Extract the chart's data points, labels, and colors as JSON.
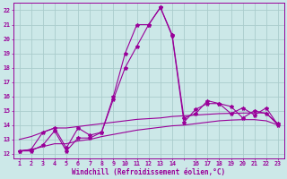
{
  "xlabel": "Windchill (Refroidissement éolien,°C)",
  "bg_color": "#cce8e8",
  "grid_color": "#aacccc",
  "line_color": "#990099",
  "xlim": [
    0.5,
    23.5
  ],
  "ylim": [
    11.7,
    22.5
  ],
  "yticks": [
    12,
    13,
    14,
    15,
    16,
    17,
    18,
    19,
    20,
    21,
    22
  ],
  "xtick_labels": [
    "1",
    "2",
    "3",
    "4",
    "5",
    "6",
    "7",
    "8",
    "9",
    "10",
    "11",
    "12",
    "13",
    "14",
    "",
    "16",
    "17",
    "18",
    "19",
    "20",
    "21",
    "22",
    "23"
  ],
  "hours": [
    1,
    2,
    3,
    4,
    5,
    6,
    7,
    8,
    9,
    10,
    11,
    12,
    13,
    14,
    15,
    16,
    17,
    18,
    19,
    20,
    21,
    22,
    23
  ],
  "line1": [
    12.2,
    12.3,
    13.5,
    13.8,
    12.4,
    13.8,
    13.3,
    13.5,
    15.8,
    18.0,
    19.5,
    21.0,
    22.2,
    20.3,
    14.5,
    14.8,
    15.7,
    15.5,
    14.8,
    15.2,
    14.7,
    15.2,
    14.0
  ],
  "line2": [
    12.2,
    12.2,
    12.6,
    13.6,
    12.2,
    13.1,
    13.1,
    13.5,
    16.0,
    19.0,
    21.0,
    21.0,
    22.2,
    20.2,
    14.2,
    15.1,
    15.5,
    15.5,
    15.3,
    14.5,
    15.0,
    14.8,
    14.1
  ],
  "line3": [
    13.0,
    13.2,
    13.5,
    13.8,
    13.8,
    13.9,
    14.0,
    14.1,
    14.2,
    14.3,
    14.4,
    14.45,
    14.5,
    14.6,
    14.65,
    14.7,
    14.75,
    14.8,
    14.82,
    14.84,
    14.85,
    14.85,
    14.0
  ],
  "line4": [
    12.2,
    12.3,
    12.5,
    12.7,
    12.7,
    12.9,
    13.0,
    13.2,
    13.35,
    13.5,
    13.65,
    13.75,
    13.85,
    13.95,
    14.0,
    14.1,
    14.2,
    14.3,
    14.35,
    14.38,
    14.38,
    14.3,
    14.0
  ]
}
